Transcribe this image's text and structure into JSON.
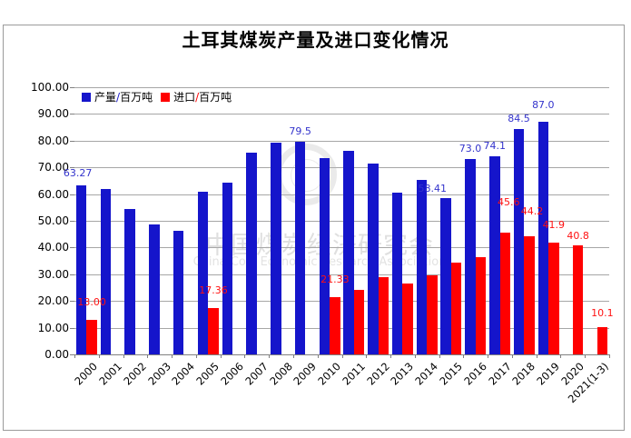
{
  "title": "土耳其煤炭产量及进口变化情况",
  "watermark": {
    "line1": "中国煤炭经济研究会",
    "line2": "China Coal Economic Research Association"
  },
  "chart_data": {
    "type": "bar",
    "title": "土耳其煤炭产量及进口变化情况",
    "categories": [
      "2000",
      "2001",
      "2002",
      "2003",
      "2004",
      "2005",
      "2006",
      "2007",
      "2008",
      "2009",
      "2010",
      "2011",
      "2012",
      "2013",
      "2014",
      "2015",
      "2016",
      "2017",
      "2018",
      "2019",
      "2020",
      "2021(1-3)"
    ],
    "series": [
      {
        "name": "产量/百万吨",
        "key": "production",
        "color": "#1515cb",
        "label_color": "#3333cc",
        "values": [
          63.27,
          62.0,
          54.3,
          48.7,
          46.4,
          61.0,
          64.3,
          75.6,
          79.4,
          79.5,
          73.5,
          76.1,
          71.5,
          60.5,
          65.2,
          58.41,
          73.0,
          74.1,
          84.5,
          87.0,
          null,
          null
        ],
        "data_labels": {
          "0": "63.27",
          "9": "79.5",
          "15": "58.41",
          "16": "73.0",
          "17": "74.1",
          "18": "84.5",
          "19": "87.0"
        }
      },
      {
        "name": "进口/百万吨",
        "key": "import",
        "color": "#ff0000",
        "label_color": "#ff1111",
        "values": [
          13.0,
          null,
          null,
          null,
          null,
          17.36,
          null,
          null,
          null,
          null,
          21.33,
          24.0,
          29.0,
          26.5,
          29.7,
          34.3,
          36.5,
          45.6,
          44.2,
          41.9,
          40.8,
          10.1
        ],
        "data_labels": {
          "0": "13.00",
          "5": "17.36",
          "10": "21.33",
          "17": "45.6",
          "18": "44.2",
          "19": "41.9",
          "20": "40.8",
          "21": "10.1"
        }
      }
    ],
    "ylim": [
      0,
      100
    ],
    "ytick_step": 10,
    "ytick_labels": [
      "100.00",
      "90.00",
      "80.00",
      "70.00",
      "60.00",
      "50.00",
      "40.00",
      "30.00",
      "20.00",
      "10.00",
      "0.00"
    ],
    "grid": true,
    "legend_position": "top-left-inside",
    "label_layout": {
      "0": {
        "default_gap": 5,
        "custom": {
          "0": {
            "gap": 7,
            "dx": -4
          },
          "15": {
            "gap": 4,
            "dx": -15
          },
          "19": {
            "gap": 12
          }
        }
      },
      "1": {
        "default_gap": 13,
        "custom": {
          "17": {
            "gap": 27,
            "dx": 4
          },
          "18": {
            "gap": 21,
            "dx": 3
          },
          "20": {
            "gap": 4
          },
          "21": {
            "gap": 9
          }
        }
      }
    }
  }
}
